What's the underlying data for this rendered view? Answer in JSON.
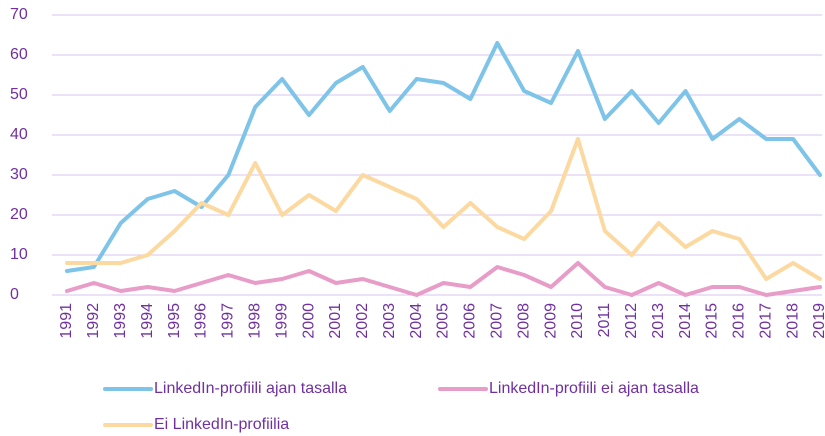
{
  "chart_data": {
    "type": "line",
    "categories": [
      "1991",
      "1992",
      "1993",
      "1994",
      "1995",
      "1996",
      "1997",
      "1998",
      "1999",
      "2000",
      "2001",
      "2002",
      "2003",
      "2004",
      "2005",
      "2006",
      "2007",
      "2008",
      "2009",
      "2010",
      "2011",
      "2012",
      "2013",
      "2014",
      "2015",
      "2016",
      "2017",
      "2018",
      "2019"
    ],
    "series": [
      {
        "name": "LinkedIn-profiili ajan tasalla",
        "color": "#7ec3e8",
        "values": [
          6,
          7,
          18,
          24,
          26,
          22,
          30,
          47,
          54,
          45,
          53,
          57,
          46,
          54,
          53,
          49,
          63,
          51,
          48,
          61,
          44,
          51,
          43,
          51,
          39,
          44,
          39,
          39,
          30
        ]
      },
      {
        "name": "LinkedIn-profiili ei ajan tasalla",
        "color": "#e89cc8",
        "values": [
          1,
          3,
          1,
          2,
          1,
          3,
          5,
          3,
          4,
          6,
          3,
          4,
          2,
          0,
          3,
          2,
          7,
          5,
          2,
          8,
          2,
          0,
          3,
          0,
          2,
          2,
          0,
          1,
          2
        ]
      },
      {
        "name": "Ei LinkedIn-profiilia",
        "color": "#fcd9a0",
        "values": [
          8,
          8,
          8,
          10,
          16,
          23,
          20,
          33,
          20,
          25,
          21,
          30,
          27,
          24,
          17,
          23,
          17,
          14,
          21,
          39,
          16,
          10,
          18,
          12,
          16,
          14,
          4,
          8,
          4
        ]
      }
    ],
    "ylim": [
      0,
      70
    ],
    "yticks": [
      0,
      10,
      20,
      30,
      40,
      50,
      60,
      70
    ],
    "grid": true
  }
}
